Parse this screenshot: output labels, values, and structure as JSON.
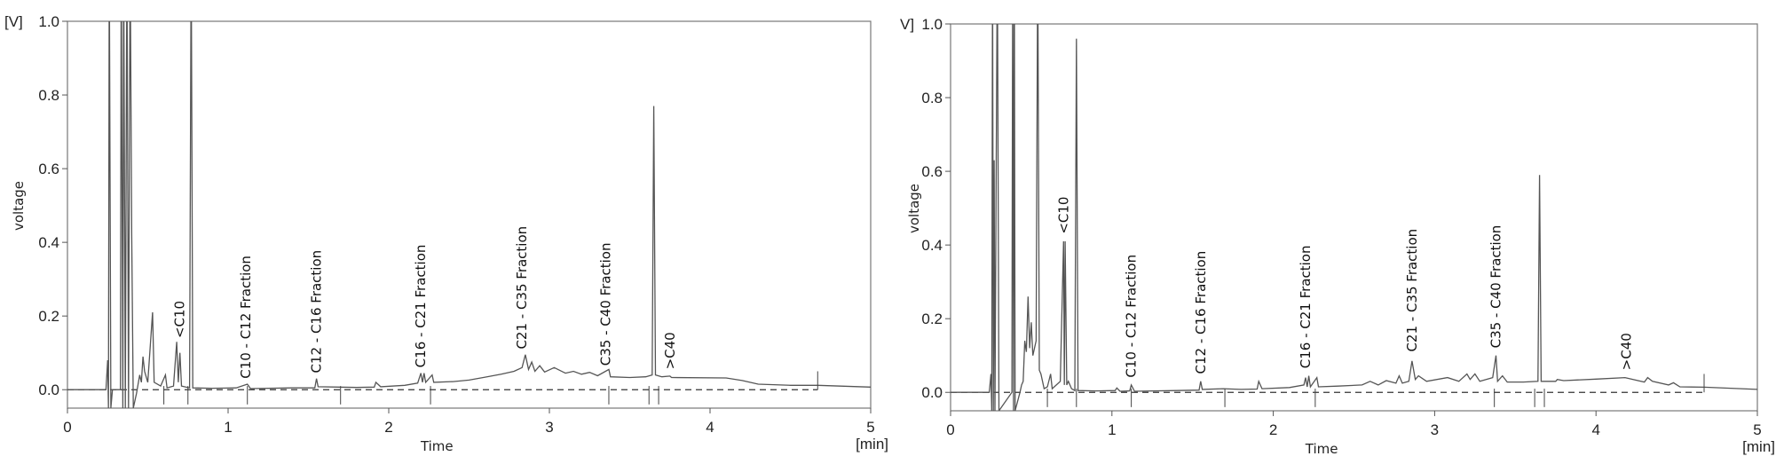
{
  "chart_data": [
    {
      "type": "line",
      "title": "",
      "xlabel": "Time",
      "xunit": "[min]",
      "ylabel": "voltage",
      "yunit": "[V]",
      "xlim": [
        0,
        5
      ],
      "ylim": [
        -0.05,
        1.0
      ],
      "xticks": [
        "0",
        "1",
        "2",
        "3",
        "4",
        "5"
      ],
      "yticks": [
        "0.0",
        "0.2",
        "0.4",
        "0.6",
        "0.8",
        "1.0"
      ],
      "grid": false,
      "line_color": "#555555",
      "baseline": {
        "style": "dashed",
        "value": 0.0,
        "x_range": [
          0,
          4.67
        ]
      },
      "trace": [
        [
          0,
          0
        ],
        [
          0.24,
          0
        ],
        [
          0.25,
          0.08
        ],
        [
          0.255,
          -0.05
        ],
        [
          0.26,
          1.2
        ],
        [
          0.27,
          -0.05
        ],
        [
          0.28,
          0
        ],
        [
          0.33,
          0
        ],
        [
          0.335,
          1.2
        ],
        [
          0.345,
          -0.05
        ],
        [
          0.35,
          1.2
        ],
        [
          0.36,
          -0.05
        ],
        [
          0.37,
          1.2
        ],
        [
          0.38,
          -0.05
        ],
        [
          0.39,
          1.2
        ],
        [
          0.4,
          0.42
        ],
        [
          0.41,
          -0.05
        ],
        [
          0.43,
          -0.01
        ],
        [
          0.45,
          0.04
        ],
        [
          0.46,
          0.02
        ],
        [
          0.47,
          0.09
        ],
        [
          0.48,
          0.05
        ],
        [
          0.5,
          0.02
        ],
        [
          0.53,
          0.21
        ],
        [
          0.54,
          0.02
        ],
        [
          0.58,
          0.01
        ],
        [
          0.61,
          0.04
        ],
        [
          0.62,
          0.005
        ],
        [
          0.66,
          0.01
        ],
        [
          0.68,
          0.13
        ],
        [
          0.69,
          0.02
        ],
        [
          0.7,
          0.1
        ],
        [
          0.71,
          0.01
        ],
        [
          0.76,
          0.005
        ],
        [
          0.77,
          1.2
        ],
        [
          0.78,
          0.005
        ],
        [
          0.9,
          0.004
        ],
        [
          1.05,
          0.005
        ],
        [
          1.12,
          0.015
        ],
        [
          1.14,
          0.003
        ],
        [
          1.4,
          0.005
        ],
        [
          1.54,
          0.005
        ],
        [
          1.55,
          0.03
        ],
        [
          1.56,
          0.008
        ],
        [
          1.8,
          0.006
        ],
        [
          1.91,
          0.007
        ],
        [
          1.92,
          0.02
        ],
        [
          1.95,
          0.008
        ],
        [
          2.1,
          0.012
        ],
        [
          2.18,
          0.018
        ],
        [
          2.2,
          0.045
        ],
        [
          2.21,
          0.02
        ],
        [
          2.22,
          0.045
        ],
        [
          2.23,
          0.02
        ],
        [
          2.27,
          0.04
        ],
        [
          2.28,
          0.02
        ],
        [
          2.4,
          0.022
        ],
        [
          2.5,
          0.026
        ],
        [
          2.6,
          0.034
        ],
        [
          2.7,
          0.042
        ],
        [
          2.78,
          0.05
        ],
        [
          2.83,
          0.06
        ],
        [
          2.85,
          0.095
        ],
        [
          2.87,
          0.055
        ],
        [
          2.89,
          0.075
        ],
        [
          2.91,
          0.05
        ],
        [
          2.94,
          0.065
        ],
        [
          2.97,
          0.048
        ],
        [
          3.03,
          0.06
        ],
        [
          3.1,
          0.045
        ],
        [
          3.15,
          0.05
        ],
        [
          3.2,
          0.042
        ],
        [
          3.25,
          0.047
        ],
        [
          3.3,
          0.038
        ],
        [
          3.37,
          0.055
        ],
        [
          3.38,
          0.035
        ],
        [
          3.5,
          0.033
        ],
        [
          3.6,
          0.035
        ],
        [
          3.64,
          0.04
        ],
        [
          3.65,
          0.77
        ],
        [
          3.66,
          0.04
        ],
        [
          3.7,
          0.035
        ],
        [
          3.75,
          0.037
        ],
        [
          3.76,
          0.033
        ],
        [
          4.1,
          0.032
        ],
        [
          4.2,
          0.025
        ],
        [
          4.3,
          0.015
        ],
        [
          4.5,
          0.012
        ],
        [
          4.67,
          0.012
        ],
        [
          5,
          0.007
        ]
      ],
      "integration_marks": [
        0.6,
        0.75,
        1.12,
        1.7,
        2.26,
        3.37,
        3.62,
        3.68,
        4.67
      ],
      "annotations": [
        {
          "text": "<C10",
          "t": 0.7,
          "v": 0.14
        },
        {
          "text": "C10 - C12 Fraction",
          "t": 1.11,
          "v": 0.03
        },
        {
          "text": "C12 - C16 Fraction",
          "t": 1.55,
          "v": 0.045
        },
        {
          "text": "C16 - C21 Fraction",
          "t": 2.2,
          "v": 0.06
        },
        {
          "text": "C21 - C35 Fraction",
          "t": 2.83,
          "v": 0.11
        },
        {
          "text": "C35 - C40 Fraction",
          "t": 3.35,
          "v": 0.065
        },
        {
          "text": ">C40",
          "t": 3.75,
          "v": 0.055
        }
      ]
    },
    {
      "type": "line",
      "title": "",
      "xlabel": "Time",
      "xunit": "[min]",
      "ylabel": "voltage",
      "yunit": "V]",
      "xlim": [
        0,
        5
      ],
      "ylim": [
        -0.05,
        1.0
      ],
      "xticks": [
        "0",
        "1",
        "2",
        "3",
        "4",
        "5"
      ],
      "yticks": [
        "0.0",
        "0.2",
        "0.4",
        "0.6",
        "0.8",
        "1.0"
      ],
      "grid": false,
      "line_color": "#555555",
      "baseline": {
        "style": "dashed",
        "value": 0.0,
        "x_range": [
          0,
          4.67
        ]
      },
      "trace": [
        [
          0,
          0
        ],
        [
          0.24,
          0
        ],
        [
          0.25,
          0.05
        ],
        [
          0.255,
          -0.05
        ],
        [
          0.26,
          1.2
        ],
        [
          0.265,
          -0.05
        ],
        [
          0.27,
          0.63
        ],
        [
          0.275,
          -0.05
        ],
        [
          0.29,
          1.2
        ],
        [
          0.3,
          -0.05
        ],
        [
          0.38,
          0
        ],
        [
          0.385,
          1.2
        ],
        [
          0.39,
          -0.05
        ],
        [
          0.395,
          1.2
        ],
        [
          0.4,
          -0.05
        ],
        [
          0.43,
          0
        ],
        [
          0.44,
          0.02
        ],
        [
          0.45,
          0.03
        ],
        [
          0.46,
          0.14
        ],
        [
          0.47,
          0.11
        ],
        [
          0.48,
          0.26
        ],
        [
          0.49,
          0.12
        ],
        [
          0.5,
          0.19
        ],
        [
          0.51,
          0.1
        ],
        [
          0.53,
          0.14
        ],
        [
          0.54,
          1.2
        ],
        [
          0.55,
          0.06
        ],
        [
          0.56,
          0.05
        ],
        [
          0.58,
          0.01
        ],
        [
          0.6,
          0.015
        ],
        [
          0.62,
          0.05
        ],
        [
          0.63,
          0.01
        ],
        [
          0.68,
          0.03
        ],
        [
          0.7,
          0.41
        ],
        [
          0.705,
          0.02
        ],
        [
          0.71,
          0.41
        ],
        [
          0.72,
          0.02
        ],
        [
          0.73,
          0.03
        ],
        [
          0.75,
          0.01
        ],
        [
          0.77,
          0.005
        ],
        [
          0.78,
          0.96
        ],
        [
          0.79,
          0.005
        ],
        [
          0.9,
          0.004
        ],
        [
          1.02,
          0.005
        ],
        [
          1.03,
          0.012
        ],
        [
          1.05,
          0.003
        ],
        [
          1.11,
          0.004
        ],
        [
          1.12,
          0.02
        ],
        [
          1.14,
          0.003
        ],
        [
          1.4,
          0.005
        ],
        [
          1.54,
          0.006
        ],
        [
          1.55,
          0.03
        ],
        [
          1.56,
          0.008
        ],
        [
          1.69,
          0.01
        ],
        [
          1.8,
          0.008
        ],
        [
          1.9,
          0.009
        ],
        [
          1.91,
          0.03
        ],
        [
          1.93,
          0.01
        ],
        [
          2.1,
          0.013
        ],
        [
          2.19,
          0.02
        ],
        [
          2.2,
          0.04
        ],
        [
          2.21,
          0.015
        ],
        [
          2.22,
          0.045
        ],
        [
          2.23,
          0.015
        ],
        [
          2.27,
          0.04
        ],
        [
          2.28,
          0.015
        ],
        [
          2.4,
          0.017
        ],
        [
          2.55,
          0.02
        ],
        [
          2.6,
          0.03
        ],
        [
          2.65,
          0.02
        ],
        [
          2.7,
          0.032
        ],
        [
          2.76,
          0.025
        ],
        [
          2.78,
          0.045
        ],
        [
          2.8,
          0.025
        ],
        [
          2.84,
          0.03
        ],
        [
          2.86,
          0.085
        ],
        [
          2.88,
          0.035
        ],
        [
          2.9,
          0.045
        ],
        [
          2.95,
          0.03
        ],
        [
          3.08,
          0.04
        ],
        [
          3.15,
          0.03
        ],
        [
          3.2,
          0.05
        ],
        [
          3.22,
          0.035
        ],
        [
          3.25,
          0.05
        ],
        [
          3.28,
          0.03
        ],
        [
          3.36,
          0.04
        ],
        [
          3.38,
          0.1
        ],
        [
          3.39,
          0.03
        ],
        [
          3.42,
          0.045
        ],
        [
          3.45,
          0.028
        ],
        [
          3.55,
          0.028
        ],
        [
          3.64,
          0.03
        ],
        [
          3.65,
          0.59
        ],
        [
          3.66,
          0.03
        ],
        [
          3.75,
          0.03
        ],
        [
          3.76,
          0.035
        ],
        [
          3.8,
          0.032
        ],
        [
          4.0,
          0.036
        ],
        [
          4.18,
          0.04
        ],
        [
          4.3,
          0.028
        ],
        [
          4.32,
          0.04
        ],
        [
          4.35,
          0.03
        ],
        [
          4.45,
          0.02
        ],
        [
          4.48,
          0.026
        ],
        [
          4.52,
          0.015
        ],
        [
          4.67,
          0.014
        ],
        [
          5,
          0.008
        ]
      ],
      "integration_marks": [
        0.6,
        0.78,
        1.12,
        1.7,
        2.26,
        3.37,
        3.62,
        3.68,
        4.67
      ],
      "annotations": [
        {
          "text": "<C10",
          "t": 0.7,
          "v": 0.43
        },
        {
          "text": "C10 - C12 Fraction",
          "t": 1.12,
          "v": 0.04
        },
        {
          "text": "C12 - C16 Fraction",
          "t": 1.55,
          "v": 0.05
        },
        {
          "text": "C16 - C21 Fraction",
          "t": 2.2,
          "v": 0.065
        },
        {
          "text": "C21 - C35 Fraction",
          "t": 2.86,
          "v": 0.11
        },
        {
          "text": "C35 - C40 Fraction",
          "t": 3.38,
          "v": 0.12
        },
        {
          "text": ">C40",
          "t": 4.19,
          "v": 0.06
        }
      ]
    }
  ]
}
